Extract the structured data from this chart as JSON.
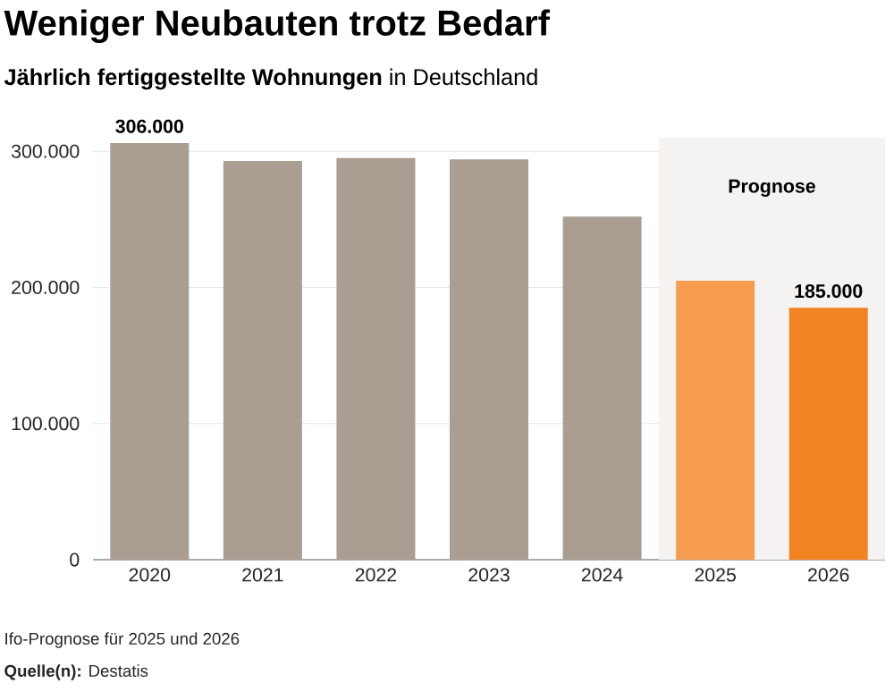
{
  "chart_data": {
    "type": "bar",
    "title": "Weniger Neubauten trotz Bedarf",
    "subtitle": "**Jährlich fertiggestellte Wohnungen** in Deutschland",
    "categories": [
      "2020",
      "2021",
      "2022",
      "2023",
      "2024",
      "2025",
      "2026"
    ],
    "values": [
      306000,
      293000,
      295000,
      294000,
      252000,
      205000,
      185000
    ],
    "colors": [
      "#aa9e93",
      "#aa9e93",
      "#aa9e93",
      "#aa9e93",
      "#aa9e93",
      "#f79d4f",
      "#f28323"
    ],
    "value_labels": [
      "306.000",
      null,
      null,
      null,
      null,
      null,
      "185.000"
    ],
    "ylim": [
      0,
      310000
    ],
    "yticks": [
      0,
      {
        "value": 100000,
        "label": "100.000"
      },
      {
        "value": 200000,
        "label": "200.000"
      },
      {
        "value": 300000,
        "label": "300.000"
      }
    ],
    "grid": "y",
    "bands": [
      {
        "axis": "x",
        "from": "2025",
        "to": "2026",
        "label": "Prognose",
        "color": "#f4f3f1"
      }
    ],
    "annotations": [
      "Ifo-Prognose für 2025 und 2026",
      "**Quelle(n):** Destatis"
    ]
  }
}
